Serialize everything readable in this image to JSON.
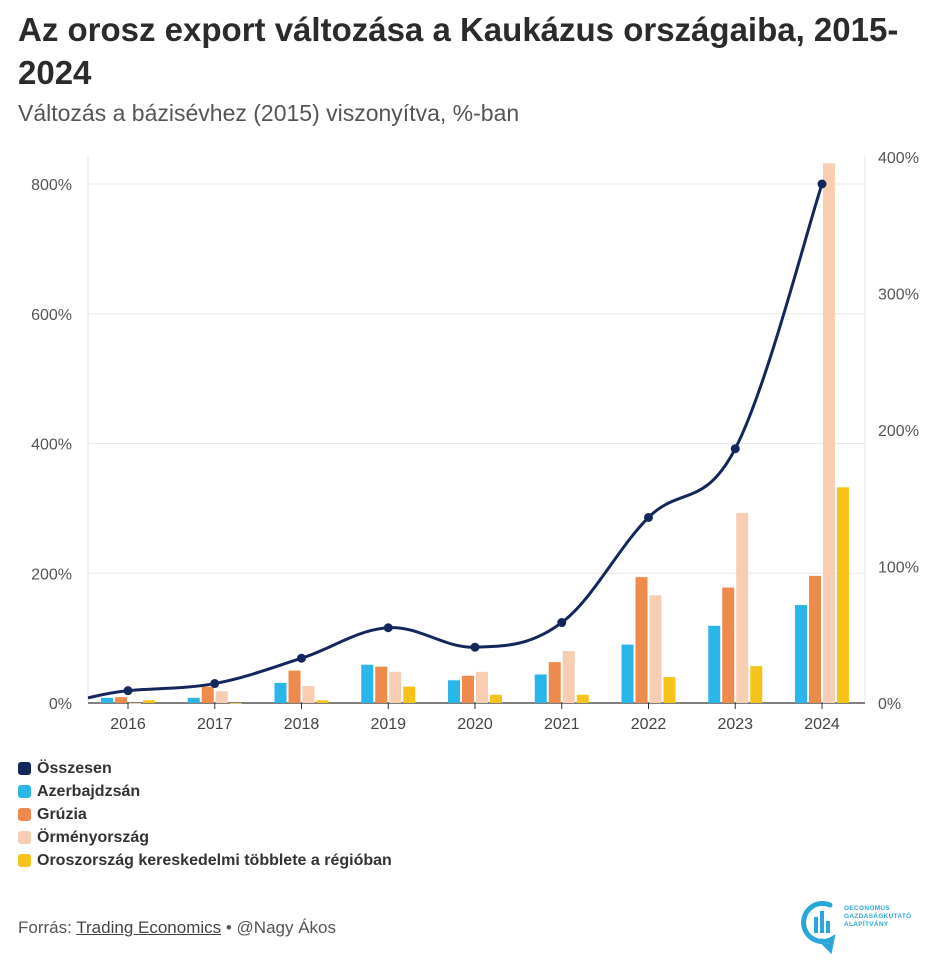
{
  "title": "Az orosz export változása a Kaukázus országaiba, 2015-2024",
  "subtitle": "Változás a bázisévhez (2015) viszonyítva, %-ban",
  "chart_data": {
    "type": "bar",
    "categories": [
      "2016",
      "2017",
      "2018",
      "2019",
      "2020",
      "2021",
      "2022",
      "2023",
      "2024"
    ],
    "y_left": {
      "ticks": [
        "0%",
        "200%",
        "400%",
        "600%",
        "800%"
      ],
      "range": [
        0,
        840
      ]
    },
    "y_right": {
      "ticks": [
        "0%",
        "100%",
        "200%",
        "300%",
        "400%"
      ],
      "range": [
        0,
        420
      ]
    },
    "grid": true,
    "legend_position": "bottom-left",
    "series": [
      {
        "name": "Azerbajdzsán",
        "type": "bar",
        "axis": "left",
        "color": "#2bb6ea",
        "values": [
          8,
          8,
          31,
          59,
          35,
          44,
          90,
          119,
          151
        ]
      },
      {
        "name": "Grúzia",
        "type": "bar",
        "axis": "left",
        "color": "#ee8a4c",
        "values": [
          9,
          25,
          50,
          56,
          42,
          63,
          194,
          178,
          196
        ]
      },
      {
        "name": "Örményország",
        "type": "bar",
        "axis": "left",
        "color": "#f8cdb2",
        "values": [
          -1,
          18,
          26,
          48,
          48,
          80,
          166,
          293,
          832
        ]
      },
      {
        "name": "Oroszország kereskedelmi többlete a régióban",
        "type": "bar",
        "axis": "right",
        "color": "#f7c21a",
        "values": [
          2,
          0,
          2,
          12,
          6,
          6,
          19,
          27,
          158
        ]
      },
      {
        "name": "Összesen",
        "type": "line",
        "axis": "left",
        "color": "#14275c",
        "values": [
          19,
          30,
          69,
          116,
          86,
          124,
          286,
          392,
          800
        ]
      }
    ],
    "line_start_left_value": 8
  },
  "legend": [
    {
      "label": "Összesen",
      "color": "#14275c"
    },
    {
      "label": "Azerbajdzsán",
      "color": "#2bb6ea"
    },
    {
      "label": "Grúzia",
      "color": "#ee8a4c"
    },
    {
      "label": "Örményország",
      "color": "#f8cdb2"
    },
    {
      "label": "Oroszország kereskedelmi többlete a régióban",
      "color": "#f7c21a"
    }
  ],
  "footer": {
    "prefix": "Forrás: ",
    "source_link": "Trading Economics",
    "separator": " • ",
    "author": "@Nagy Ákos"
  },
  "logo": {
    "line1": "OECONOMUS",
    "line2": "GAZDASÁGKUTATÓ",
    "line3": "ALAPÍTVÁNY",
    "icon": "oeconomus-logo-icon",
    "color": "#2aa7d8"
  }
}
